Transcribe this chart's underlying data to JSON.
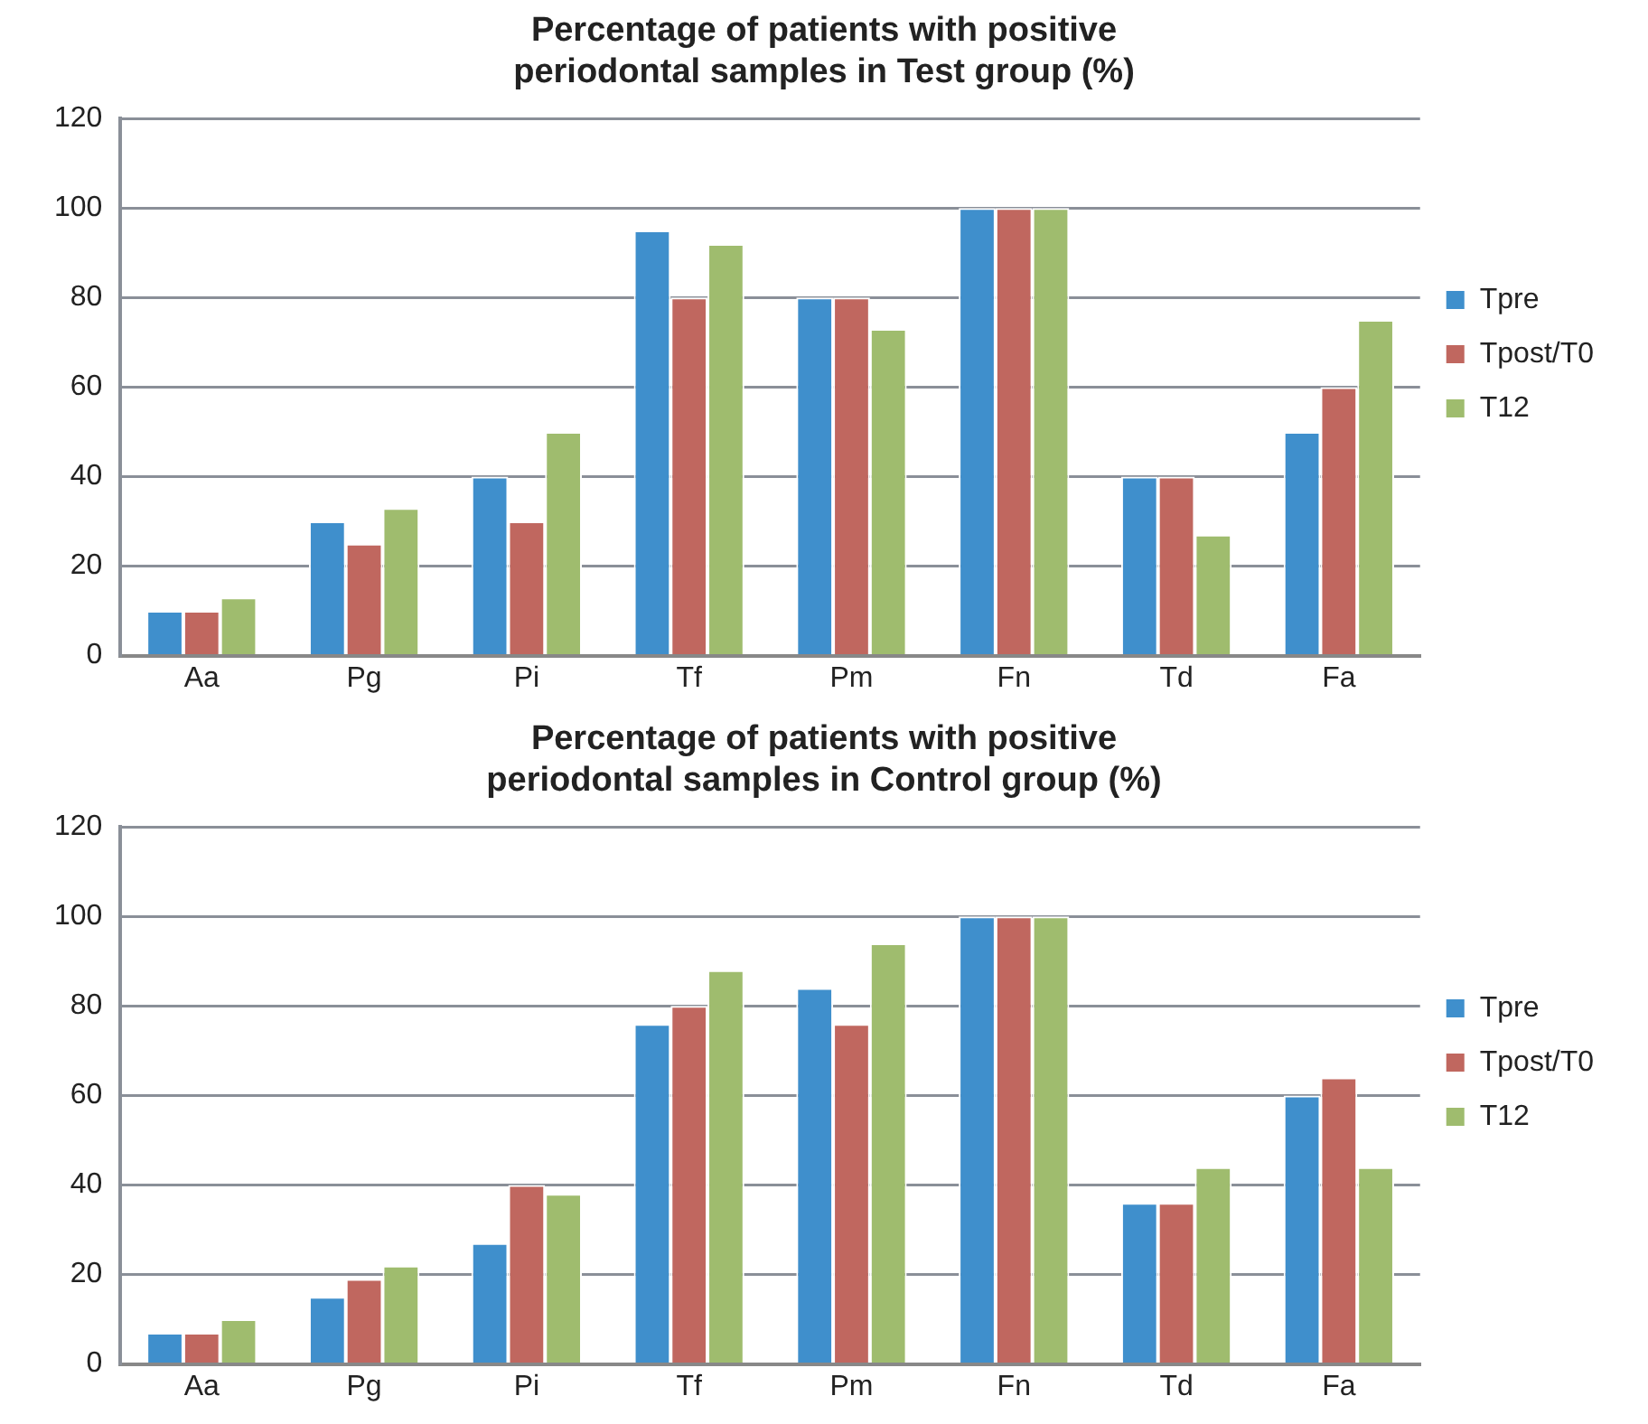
{
  "chart_data": [
    {
      "type": "bar",
      "title": [
        "Percentage of patients with positive",
        "periodontal samples in Test group (%)"
      ],
      "categories": [
        "Aa",
        "Pg",
        "Pi",
        "Tf",
        "Pm",
        "Fn",
        "Td",
        "Fa"
      ],
      "series": [
        {
          "name": "Tpre",
          "color": "#3f8fcc",
          "values": [
            10,
            30,
            40,
            95,
            80,
            100,
            40,
            50
          ]
        },
        {
          "name": "Tpost/T0",
          "color": "#c0675f",
          "values": [
            10,
            25,
            30,
            80,
            80,
            100,
            40,
            60
          ]
        },
        {
          "name": "T12",
          "color": "#9fbc6e",
          "values": [
            13,
            33,
            50,
            92,
            73,
            100,
            27,
            75
          ]
        }
      ],
      "ylim": [
        0,
        120
      ],
      "yticks": [
        0,
        20,
        40,
        60,
        80,
        100,
        120
      ],
      "grid": "y",
      "legend": "right"
    },
    {
      "type": "bar",
      "title": [
        "Percentage of patients with positive",
        "periodontal samples in Control group (%)"
      ],
      "categories": [
        "Aa",
        "Pg",
        "Pi",
        "Tf",
        "Pm",
        "Fn",
        "Td",
        "Fa"
      ],
      "series": [
        {
          "name": "Tpre",
          "color": "#3f8fcc",
          "values": [
            7,
            15,
            27,
            76,
            84,
            100,
            36,
            60
          ]
        },
        {
          "name": "Tpost/T0",
          "color": "#c0675f",
          "values": [
            7,
            19,
            40,
            80,
            76,
            100,
            36,
            64
          ]
        },
        {
          "name": "T12",
          "color": "#9fbc6e",
          "values": [
            10,
            22,
            38,
            88,
            94,
            100,
            44,
            44
          ]
        }
      ],
      "ylim": [
        0,
        120
      ],
      "yticks": [
        0,
        20,
        40,
        60,
        80,
        100,
        120
      ],
      "grid": "y",
      "legend": "right"
    }
  ]
}
